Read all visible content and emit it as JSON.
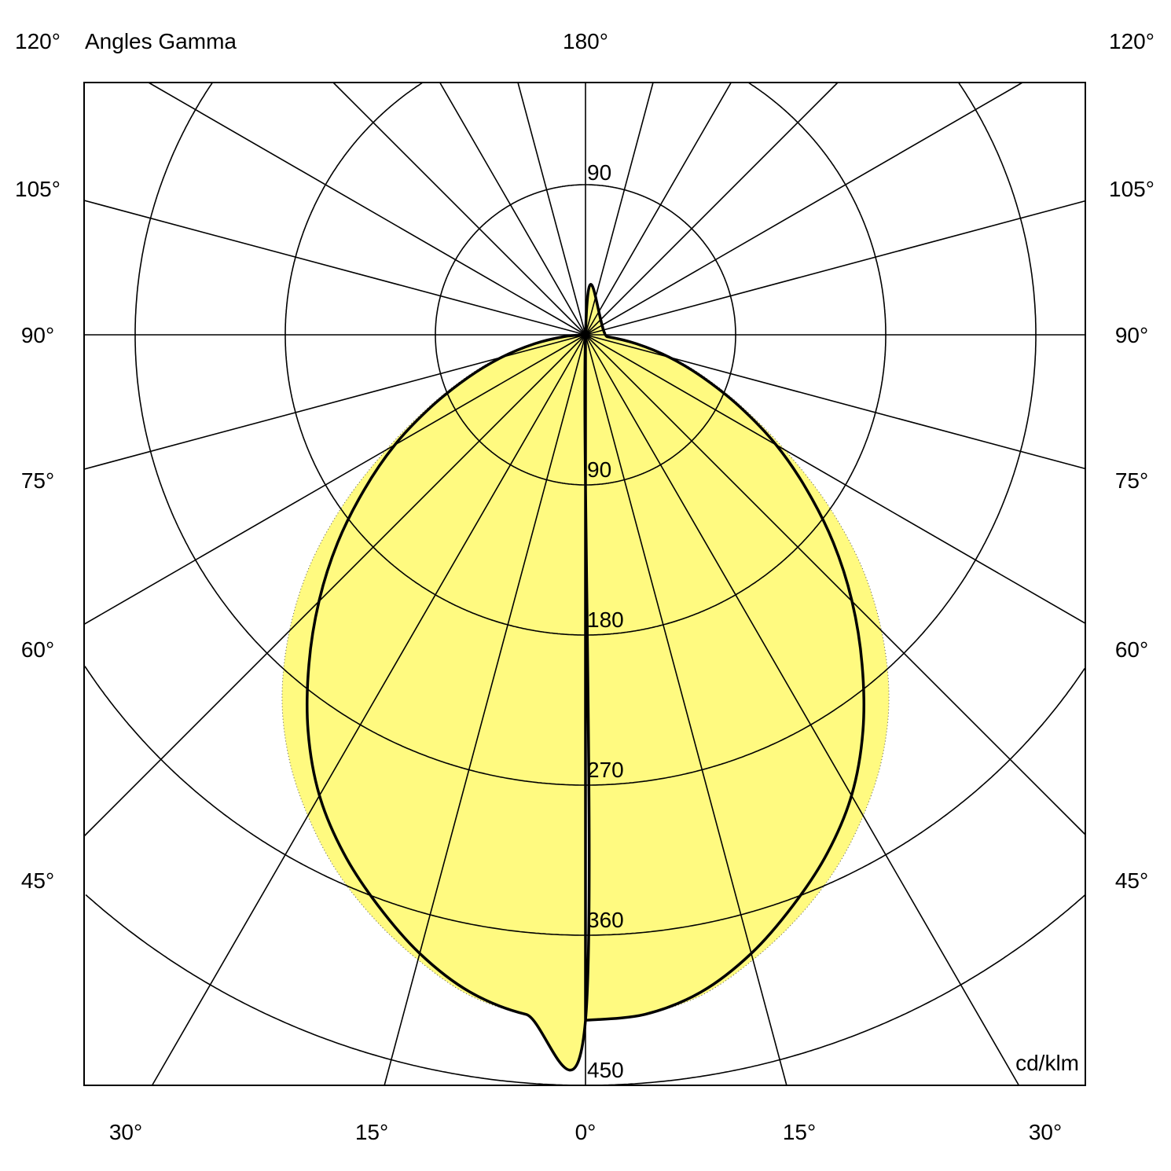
{
  "chart_data": {
    "type": "polar",
    "title": "Angles Gamma",
    "unit": "cd/klm",
    "radial_ticks": [
      90,
      180,
      270,
      360,
      450
    ],
    "radial_range": [
      0,
      450
    ],
    "top_angle_label": "180°",
    "side_angle_labels": [
      "120°",
      "105°",
      "90°",
      "75°",
      "60°",
      "45°"
    ],
    "bottom_angle_labels": [
      "30°",
      "15°",
      "0°",
      "15°",
      "30°"
    ],
    "grid": true,
    "grid_angle_step_deg": 15,
    "gamma_deg": [
      0,
      5,
      10,
      15,
      20,
      25,
      30,
      35,
      40,
      45,
      50,
      55,
      60,
      65,
      70,
      75,
      80,
      85,
      90
    ],
    "series": [
      {
        "style": "black-solid",
        "color": "#000000",
        "values": [
          411,
          409,
          400,
          384,
          364,
          343,
          319,
          290,
          258,
          226,
          194,
          162,
          132,
          102,
          75,
          52,
          31,
          13,
          0
        ]
      },
      {
        "style": "yellow-filled-dotted",
        "color": "#FFFA80",
        "values": [
          411,
          409,
          402,
          388,
          372,
          354,
          333,
          310,
          283,
          251,
          216,
          177,
          138,
          105,
          78,
          55,
          33,
          14,
          0
        ]
      }
    ]
  }
}
